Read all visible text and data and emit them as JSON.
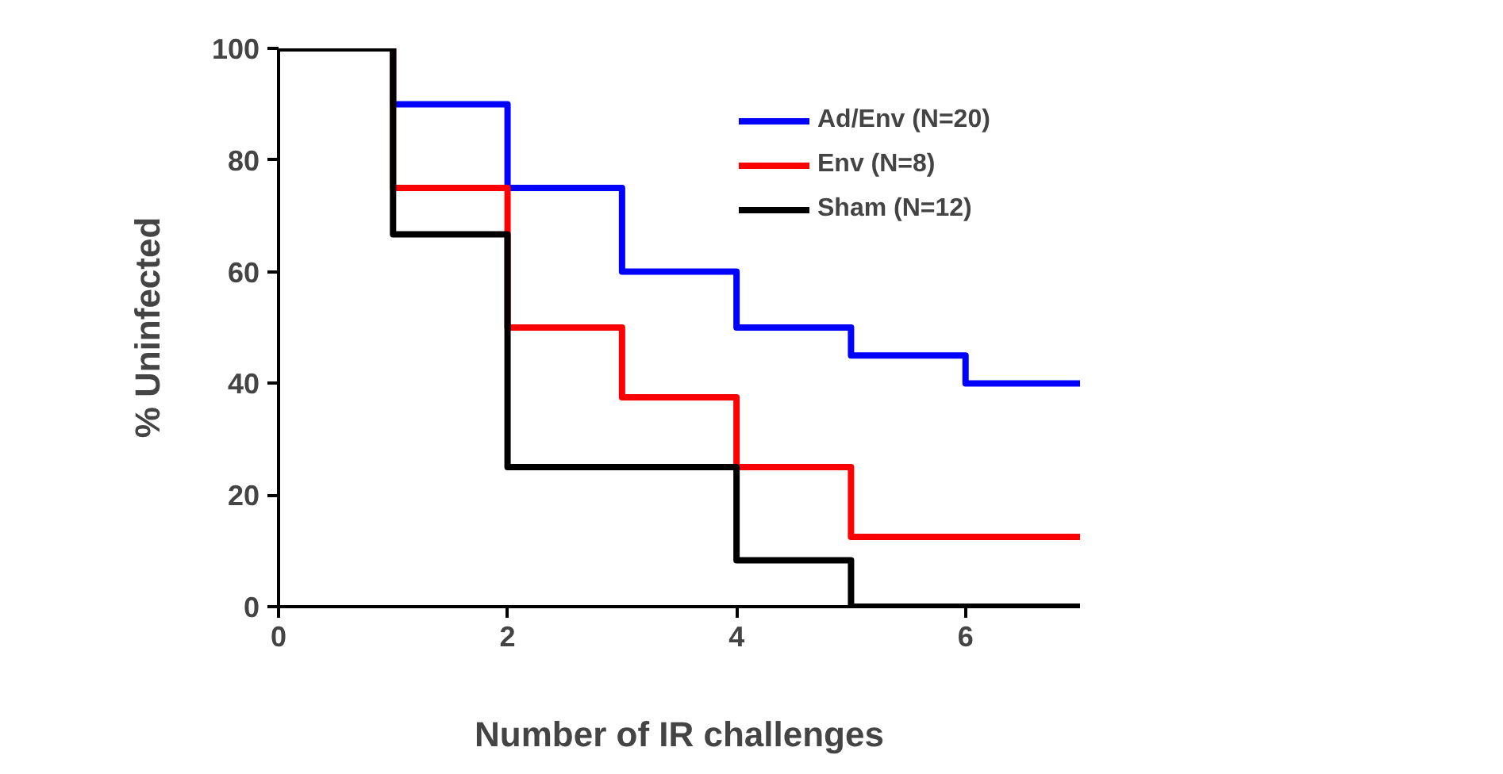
{
  "chart_data": {
    "type": "step",
    "xlabel": "Number of IR challenges",
    "ylabel": "% Uninfected",
    "x": [
      0,
      1,
      2,
      3,
      4,
      5,
      6,
      7
    ],
    "series": [
      {
        "name": "Ad/Env (N=20)",
        "color": "#0000ff",
        "values": [
          100,
          90,
          75,
          60,
          50,
          45,
          40,
          40
        ]
      },
      {
        "name": "Env (N=8)",
        "color": "#ff0000",
        "values": [
          100,
          75,
          50,
          37.5,
          25,
          12.5,
          12.5,
          12.5
        ]
      },
      {
        "name": "Sham (N=12)",
        "color": "#000000",
        "values": [
          100,
          66.7,
          25,
          25,
          8.3,
          0,
          0,
          0
        ]
      }
    ],
    "xlim": [
      0,
      7
    ],
    "xticks": [
      0,
      2,
      4,
      6
    ],
    "ylim": [
      0,
      100
    ],
    "yticks": [
      0,
      20,
      40,
      60,
      80,
      100
    ],
    "grid": false,
    "legend": "top right",
    "marker": "none",
    "line_style": "solid"
  }
}
